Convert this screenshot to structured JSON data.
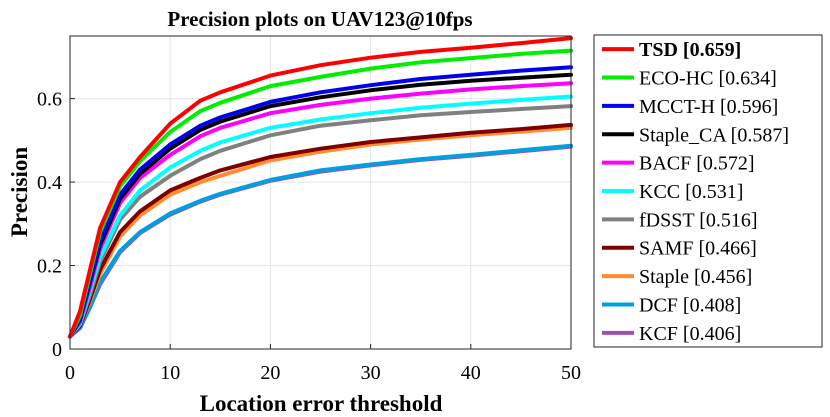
{
  "chart_data": {
    "type": "line",
    "title": "Precision plots on UAV123@10fps",
    "xlabel": "Location error threshold",
    "ylabel": "Precision",
    "xlim": [
      0,
      50
    ],
    "ylim": [
      0,
      0.75
    ],
    "xticks": [
      "0",
      "10",
      "20",
      "30",
      "40",
      "50"
    ],
    "yticks": [
      "0",
      "0.2",
      "0.4",
      "0.6"
    ],
    "grid": true,
    "legend_position": "outside-right",
    "x": [
      0,
      1,
      2,
      3,
      5,
      7,
      10,
      13,
      15,
      20,
      25,
      30,
      35,
      40,
      45,
      50
    ],
    "series": [
      {
        "name": "TSD [0.659]",
        "color": "#ff0000",
        "bold": true,
        "values": [
          0.03,
          0.09,
          0.19,
          0.29,
          0.4,
          0.46,
          0.54,
          0.595,
          0.615,
          0.655,
          0.68,
          0.698,
          0.712,
          0.722,
          0.733,
          0.745
        ]
      },
      {
        "name": "ECO-HC [0.634]",
        "color": "#00ee00",
        "bold": false,
        "values": [
          0.03,
          0.08,
          0.18,
          0.28,
          0.39,
          0.45,
          0.52,
          0.57,
          0.59,
          0.63,
          0.652,
          0.672,
          0.687,
          0.697,
          0.707,
          0.715
        ]
      },
      {
        "name": "MCCT-H [0.596]",
        "color": "#0000ee",
        "bold": false,
        "values": [
          0.03,
          0.07,
          0.16,
          0.26,
          0.37,
          0.43,
          0.49,
          0.535,
          0.555,
          0.592,
          0.615,
          0.632,
          0.647,
          0.657,
          0.667,
          0.675
        ]
      },
      {
        "name": "Staple_CA [0.587]",
        "color": "#000000",
        "bold": false,
        "values": [
          0.03,
          0.07,
          0.16,
          0.25,
          0.36,
          0.42,
          0.48,
          0.525,
          0.545,
          0.582,
          0.603,
          0.62,
          0.633,
          0.643,
          0.65,
          0.657
        ]
      },
      {
        "name": "BACF [0.572]",
        "color": "#ff00ff",
        "bold": false,
        "values": [
          0.03,
          0.065,
          0.15,
          0.24,
          0.35,
          0.41,
          0.465,
          0.51,
          0.53,
          0.565,
          0.585,
          0.6,
          0.612,
          0.622,
          0.63,
          0.637
        ]
      },
      {
        "name": "KCC [0.531]",
        "color": "#00ffff",
        "bold": false,
        "values": [
          0.03,
          0.06,
          0.14,
          0.22,
          0.32,
          0.38,
          0.435,
          0.475,
          0.495,
          0.53,
          0.55,
          0.565,
          0.578,
          0.588,
          0.597,
          0.605
        ]
      },
      {
        "name": "fDSST [0.516]",
        "color": "#808080",
        "bold": false,
        "values": [
          0.03,
          0.06,
          0.13,
          0.21,
          0.31,
          0.365,
          0.415,
          0.455,
          0.475,
          0.512,
          0.535,
          0.548,
          0.56,
          0.568,
          0.575,
          0.582
        ]
      },
      {
        "name": "SAMF [0.466]",
        "color": "#800000",
        "bold": false,
        "values": [
          0.03,
          0.055,
          0.12,
          0.19,
          0.28,
          0.33,
          0.38,
          0.41,
          0.428,
          0.46,
          0.48,
          0.496,
          0.507,
          0.518,
          0.527,
          0.537
        ]
      },
      {
        "name": "Staple [0.456]",
        "color": "#ff8c30",
        "bold": false,
        "values": [
          0.03,
          0.055,
          0.115,
          0.18,
          0.27,
          0.32,
          0.37,
          0.4,
          0.415,
          0.452,
          0.473,
          0.49,
          0.502,
          0.512,
          0.521,
          0.53
        ]
      },
      {
        "name": "DCF [0.408]",
        "color": "#00a0e0",
        "bold": false,
        "values": [
          0.03,
          0.05,
          0.1,
          0.16,
          0.235,
          0.28,
          0.325,
          0.355,
          0.372,
          0.405,
          0.428,
          0.442,
          0.455,
          0.465,
          0.476,
          0.487
        ]
      },
      {
        "name": "KCF [0.406]",
        "color": "#a050b0",
        "bold": false,
        "values": [
          0.03,
          0.05,
          0.1,
          0.155,
          0.232,
          0.278,
          0.322,
          0.353,
          0.37,
          0.403,
          0.425,
          0.44,
          0.453,
          0.463,
          0.474,
          0.485
        ]
      }
    ]
  }
}
